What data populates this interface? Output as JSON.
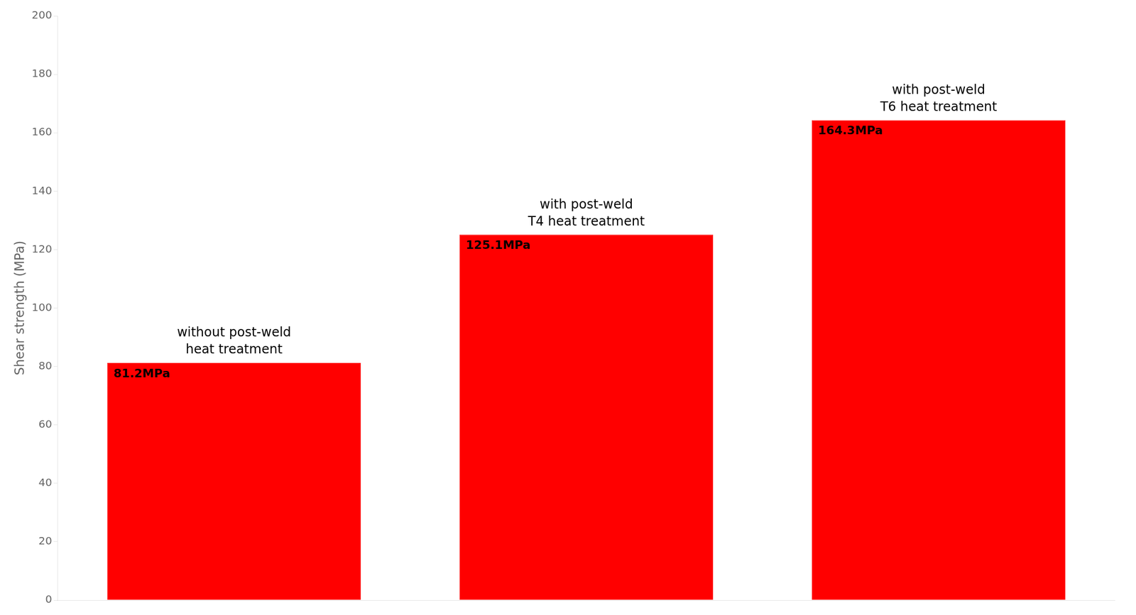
{
  "chart_data": {
    "type": "bar",
    "categories": [
      null,
      null,
      null
    ],
    "values": [
      81.2,
      125.1,
      164.3
    ],
    "value_labels": [
      "81.2MPa",
      "125.1MPa",
      "164.3MPa"
    ],
    "data_labels": true,
    "color": "#FF0000",
    "ylabel": "Shear strength (MPa)",
    "ylim": [
      0,
      200
    ],
    "yticks": [
      0,
      20,
      40,
      60,
      80,
      100,
      120,
      140,
      160,
      180,
      200
    ],
    "grid": false,
    "tick_labels": "y",
    "annotations": [
      "without post-weld\nheat treatment",
      "with post-weld\nT4 heat treatment",
      "with post-weld\nT6 heat treatment"
    ]
  }
}
